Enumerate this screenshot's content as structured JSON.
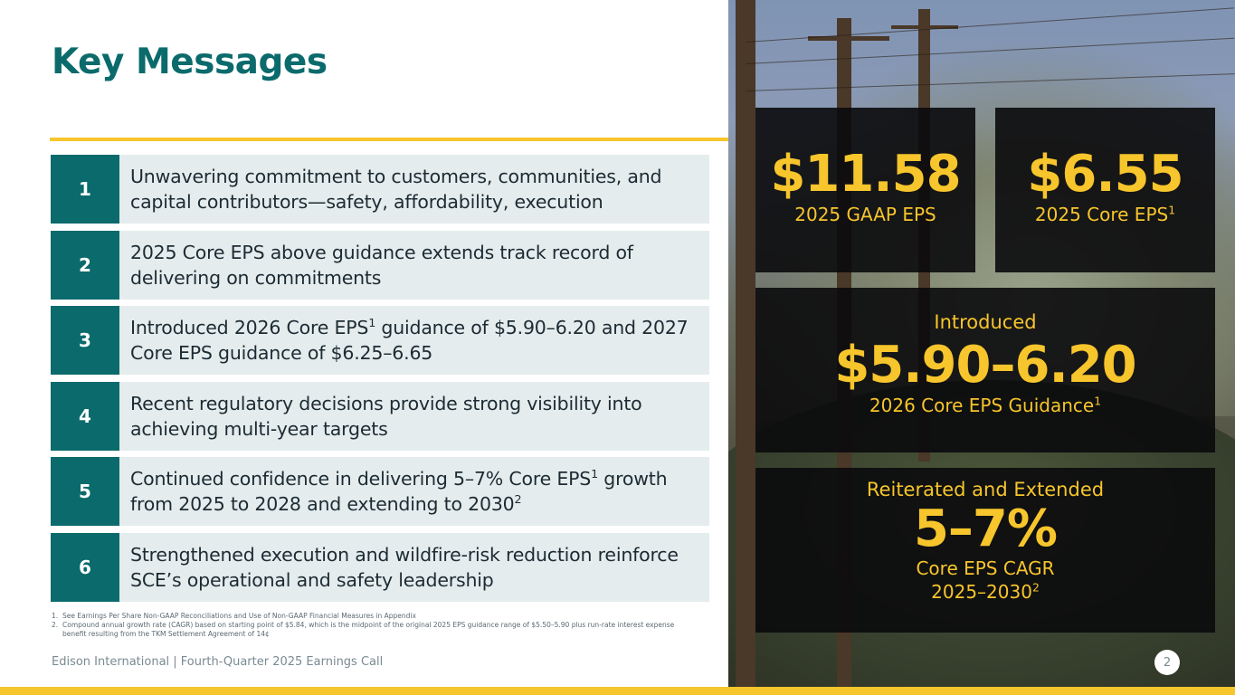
{
  "title": "Key Messages",
  "messages": [
    {
      "num": "1",
      "text": "Unwavering commitment to customers, communities, and capital contributors—safety, affordability, execution"
    },
    {
      "num": "2",
      "text": "2025 Core EPS above guidance extends track record of delivering on commitments"
    },
    {
      "num": "3",
      "text_a": "Introduced 2026 Core EPS",
      "sup": "1",
      "text_b": " guidance of $5.90–6.20 and 2027 Core EPS guidance of $6.25–6.65"
    },
    {
      "num": "4",
      "text": "Recent regulatory decisions provide strong visibility into achieving multi-year targets"
    },
    {
      "num": "5",
      "text_a": "Continued confidence in delivering 5–7% Core EPS",
      "sup": "1",
      "text_b": " growth from 2025 to 2028 and extending to 2030",
      "sup2": "2"
    },
    {
      "num": "6",
      "text": "Strengthened execution and wildfire-risk reduction reinforce SCE’s operational and safety leadership"
    }
  ],
  "footnotes": [
    {
      "num": "1.",
      "text": "See Earnings Per Share Non-GAAP Reconciliations and Use of Non-GAAP Financial Measures in Appendix"
    },
    {
      "num": "2.",
      "text": "Compound annual growth rate (CAGR) based on starting point of $5.84, which is the midpoint of the original 2025 EPS guidance range of $5.50–5.90 plus run-rate interest expense benefit resulting from the TKM Settlement Agreement of 14¢"
    }
  ],
  "footer": "Edison International |  Fourth-Quarter 2025 Earnings Call",
  "page_number": "2",
  "stats": {
    "gaap": {
      "value": "$11.58",
      "label": "2025 GAAP EPS"
    },
    "core": {
      "value": "$6.55",
      "label": "2025 Core EPS",
      "sup": "1"
    },
    "guidance": {
      "intro": "Introduced",
      "value": "$5.90–6.20",
      "label": "2026 Core EPS Guidance",
      "sup": "1"
    },
    "cagr": {
      "intro": "Reiterated and Extended",
      "value": "5–7%",
      "label1": "Core EPS CAGR",
      "label2": "2025–2030",
      "sup": "2"
    }
  },
  "colors": {
    "teal": "#0b6a6c",
    "gold": "#f7c52c",
    "row_bg": "#e5eced"
  }
}
